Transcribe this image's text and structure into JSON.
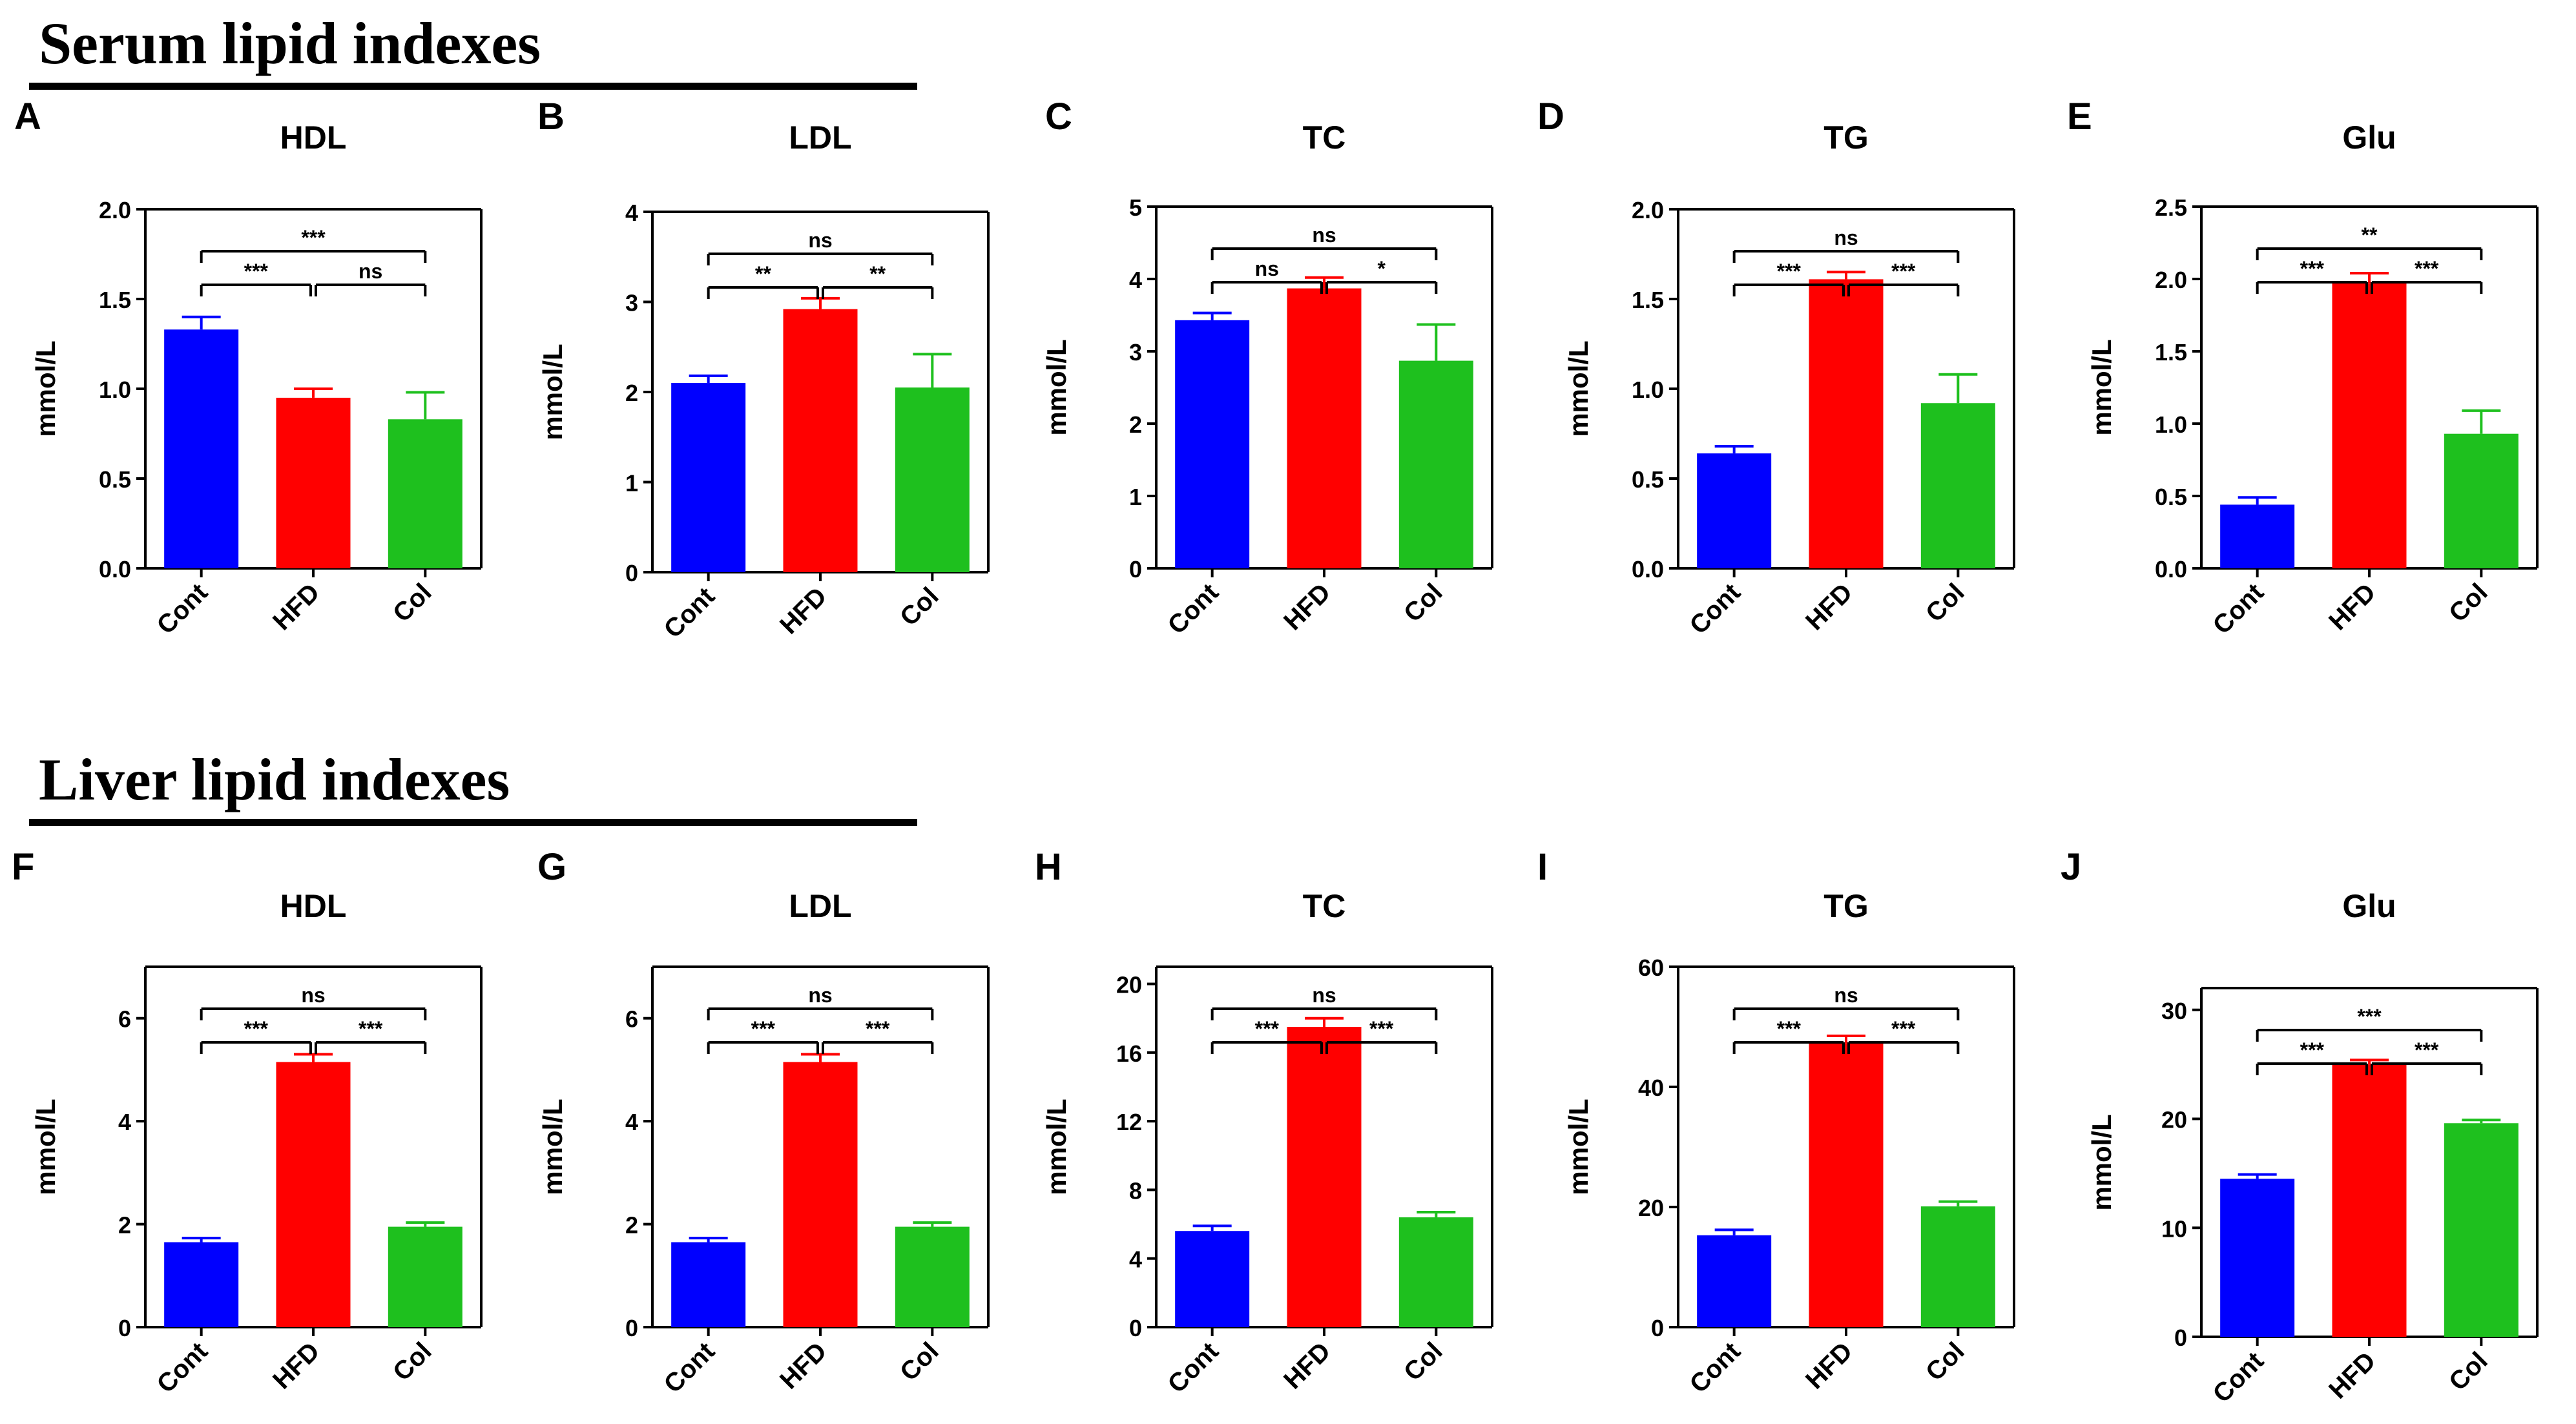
{
  "sections": [
    {
      "title": "Serum lipid indexes"
    },
    {
      "title": "Liver lipid indexes"
    }
  ],
  "colors": {
    "Cont": "#0000ff",
    "HFD": "#ff0000",
    "Col": "#1ec01e"
  },
  "chart_data": [
    {
      "type": "bar",
      "panel": "A",
      "title": "HDL",
      "ylabel": "mmol/L",
      "categories": [
        "Cont",
        "HFD",
        "Col"
      ],
      "values": [
        1.33,
        0.95,
        0.83
      ],
      "errors": [
        0.07,
        0.05,
        0.15
      ],
      "ylim": [
        0,
        2.0
      ],
      "yticks": [
        "0.0",
        "0.5",
        "1.0",
        "1.5",
        "2.0"
      ],
      "significance": [
        {
          "from": 0,
          "to": 1,
          "label": "***"
        },
        {
          "from": 1,
          "to": 2,
          "label": "ns"
        },
        {
          "from": 0,
          "to": 2,
          "label": "***"
        }
      ]
    },
    {
      "type": "bar",
      "panel": "B",
      "title": "LDL",
      "ylabel": "mmol/L",
      "categories": [
        "Cont",
        "HFD",
        "Col"
      ],
      "values": [
        2.1,
        2.92,
        2.05
      ],
      "errors": [
        0.08,
        0.12,
        0.37
      ],
      "ylim": [
        0,
        4
      ],
      "yticks": [
        "0",
        "1",
        "2",
        "3",
        "4"
      ],
      "significance": [
        {
          "from": 0,
          "to": 1,
          "label": "**"
        },
        {
          "from": 1,
          "to": 2,
          "label": "**"
        },
        {
          "from": 0,
          "to": 2,
          "label": "ns"
        }
      ]
    },
    {
      "type": "bar",
      "panel": "C",
      "title": "TC",
      "ylabel": "mmol/L",
      "categories": [
        "Cont",
        "HFD",
        "Col"
      ],
      "values": [
        3.43,
        3.87,
        2.87
      ],
      "errors": [
        0.1,
        0.15,
        0.5
      ],
      "ylim": [
        0,
        5
      ],
      "yticks": [
        "0",
        "1",
        "2",
        "3",
        "4",
        "5"
      ],
      "significance": [
        {
          "from": 0,
          "to": 1,
          "label": "ns"
        },
        {
          "from": 1,
          "to": 2,
          "label": "*"
        },
        {
          "from": 0,
          "to": 2,
          "label": "ns"
        }
      ]
    },
    {
      "type": "bar",
      "panel": "D",
      "title": "TG",
      "ylabel": "mmol/L",
      "categories": [
        "Cont",
        "HFD",
        "Col"
      ],
      "values": [
        0.64,
        1.61,
        0.92
      ],
      "errors": [
        0.04,
        0.04,
        0.16
      ],
      "ylim": [
        0,
        2.0
      ],
      "yticks": [
        "0.0",
        "0.5",
        "1.0",
        "1.5",
        "2.0"
      ],
      "significance": [
        {
          "from": 0,
          "to": 1,
          "label": "***"
        },
        {
          "from": 1,
          "to": 2,
          "label": "***"
        },
        {
          "from": 0,
          "to": 2,
          "label": "ns"
        }
      ]
    },
    {
      "type": "bar",
      "panel": "E",
      "title": "Glu",
      "ylabel": "mmol/L",
      "categories": [
        "Cont",
        "HFD",
        "Col"
      ],
      "values": [
        0.44,
        1.97,
        0.93
      ],
      "errors": [
        0.05,
        0.07,
        0.16
      ],
      "ylim": [
        0,
        2.5
      ],
      "yticks": [
        "0.0",
        "0.5",
        "1.0",
        "1.5",
        "2.0",
        "2.5"
      ],
      "significance": [
        {
          "from": 0,
          "to": 1,
          "label": "***"
        },
        {
          "from": 1,
          "to": 2,
          "label": "***"
        },
        {
          "from": 0,
          "to": 2,
          "label": "**"
        }
      ]
    },
    {
      "type": "bar",
      "panel": "F",
      "title": "HDL",
      "ylabel": "mmol/L",
      "categories": [
        "Cont",
        "HFD",
        "Col"
      ],
      "values": [
        1.65,
        5.15,
        1.95
      ],
      "errors": [
        0.08,
        0.15,
        0.08
      ],
      "ylim": [
        0,
        7
      ],
      "yticks": [
        "0",
        "2",
        "4",
        "6"
      ],
      "significance": [
        {
          "from": 0,
          "to": 1,
          "label": "***"
        },
        {
          "from": 1,
          "to": 2,
          "label": "***"
        },
        {
          "from": 0,
          "to": 2,
          "label": "ns"
        }
      ]
    },
    {
      "type": "bar",
      "panel": "G",
      "title": "LDL",
      "ylabel": "mmol/L",
      "categories": [
        "Cont",
        "HFD",
        "Col"
      ],
      "values": [
        1.65,
        5.15,
        1.95
      ],
      "errors": [
        0.08,
        0.15,
        0.08
      ],
      "ylim": [
        0,
        7
      ],
      "yticks": [
        "0",
        "2",
        "4",
        "6"
      ],
      "significance": [
        {
          "from": 0,
          "to": 1,
          "label": "***"
        },
        {
          "from": 1,
          "to": 2,
          "label": "***"
        },
        {
          "from": 0,
          "to": 2,
          "label": "ns"
        }
      ]
    },
    {
      "type": "bar",
      "panel": "H",
      "title": "TC",
      "ylabel": "mmol/L",
      "categories": [
        "Cont",
        "HFD",
        "Col"
      ],
      "values": [
        5.6,
        17.5,
        6.4
      ],
      "errors": [
        0.3,
        0.5,
        0.3
      ],
      "ylim": [
        0,
        21
      ],
      "yticks": [
        "0",
        "4",
        "8",
        "12",
        "16",
        "20"
      ],
      "significance": [
        {
          "from": 0,
          "to": 1,
          "label": "***"
        },
        {
          "from": 1,
          "to": 2,
          "label": "***"
        },
        {
          "from": 0,
          "to": 2,
          "label": "ns"
        }
      ]
    },
    {
      "type": "bar",
      "panel": "I",
      "title": "TG",
      "ylabel": "mmol/L",
      "categories": [
        "Cont",
        "HFD",
        "Col"
      ],
      "values": [
        15.3,
        47.3,
        20.1
      ],
      "errors": [
        0.9,
        1.2,
        0.8
      ],
      "ylim": [
        0,
        60
      ],
      "yticks": [
        "0",
        "20",
        "40",
        "60"
      ],
      "significance": [
        {
          "from": 0,
          "to": 1,
          "label": "***"
        },
        {
          "from": 1,
          "to": 2,
          "label": "***"
        },
        {
          "from": 0,
          "to": 2,
          "label": "ns"
        }
      ]
    },
    {
      "type": "bar",
      "panel": "J",
      "title": "Glu",
      "ylabel": "mmol/L",
      "categories": [
        "Cont",
        "HFD",
        "Col"
      ],
      "values": [
        14.5,
        25.0,
        19.6
      ],
      "errors": [
        0.4,
        0.4,
        0.3
      ],
      "ylim": [
        0,
        32
      ],
      "yticks": [
        "0",
        "10",
        "20",
        "30"
      ],
      "significance": [
        {
          "from": 0,
          "to": 1,
          "label": "***"
        },
        {
          "from": 1,
          "to": 2,
          "label": "***"
        },
        {
          "from": 0,
          "to": 2,
          "label": "***"
        }
      ]
    }
  ]
}
